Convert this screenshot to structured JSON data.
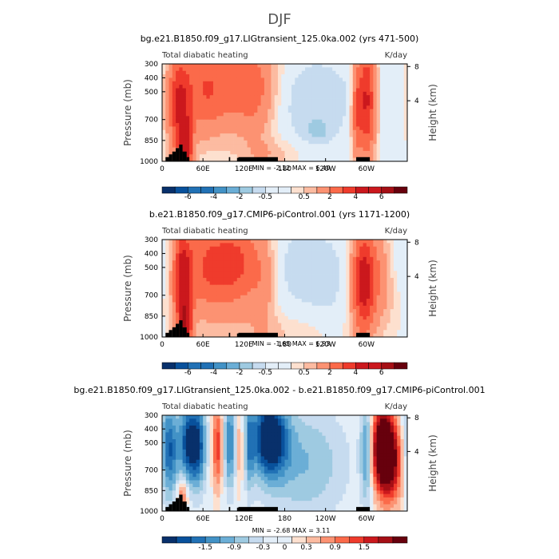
{
  "figure_title": "DJF",
  "colors": {
    "cold": [
      "#08306b",
      "#08519c",
      "#2171b5",
      "#4292c6",
      "#6baed6",
      "#9ecae1",
      "#c6dbef",
      "#e3eef8"
    ],
    "warm": [
      "#fde0cf",
      "#fcbba1",
      "#fc9272",
      "#fb6a4a",
      "#ef3b2c",
      "#cb181d",
      "#a50f15",
      "#67000d"
    ],
    "terrain": "#000000"
  },
  "chart_data": [
    {
      "type": "heatmap",
      "title": "bg.e21.B1850.f09_g17.LIGtransient_125.0ka.002 (yrs 471-500)",
      "left_label": "Total diabatic heating",
      "units": "K/day",
      "ylabel": "Pressure (mb)",
      "ylabel_right": "Height (km)",
      "x_ticks": [
        "0",
        "60E",
        "120E",
        "180",
        "120W",
        "60W"
      ],
      "x_tick_values": [
        0,
        60,
        120,
        180,
        240,
        300
      ],
      "xlim": [
        0,
        360
      ],
      "y_ticks": [
        "300",
        "400",
        "500",
        "700",
        "850",
        "1000"
      ],
      "y_tick_values": [
        300,
        400,
        500,
        700,
        850,
        1000
      ],
      "ylim": [
        300,
        1000
      ],
      "right_ticks": [
        "8",
        "4"
      ],
      "right_tick_values": [
        8,
        4
      ],
      "min_text": "MIN =   -2.12   MAX =   6.40",
      "min": -2.12,
      "max": 6.4,
      "levels": [
        -7,
        -6,
        -5,
        -4,
        -3,
        -2,
        -1,
        -0.5,
        -0.1,
        0.1,
        0.5,
        1,
        2,
        3,
        4,
        5,
        6,
        7
      ],
      "colorbar_labels": [
        "-6",
        "-4",
        "-2",
        "-0.5",
        "0.5",
        "2",
        "4",
        "6"
      ],
      "colorbar_label_levels": [
        -6,
        -4,
        -2,
        -0.5,
        0.5,
        2,
        4,
        6
      ],
      "features": [
        {
          "lon": 25,
          "w": 12,
          "p": 600,
          "hp": 280,
          "a": 3.8
        },
        {
          "lon": 35,
          "w": 7,
          "p": 920,
          "hp": 140,
          "a": 4.0
        },
        {
          "lon": 105,
          "w": 45,
          "p": 480,
          "hp": 230,
          "a": 2.6
        },
        {
          "lon": 60,
          "w": 18,
          "p": 480,
          "hp": 250,
          "a": 1.4
        },
        {
          "lon": 140,
          "w": 18,
          "p": 500,
          "hp": 300,
          "a": 1.0
        },
        {
          "lon": 210,
          "w": 55,
          "p": 560,
          "hp": 230,
          "a": -1.05
        },
        {
          "lon": 228,
          "w": 14,
          "p": 790,
          "hp": 60,
          "a": -0.7
        },
        {
          "lon": 160,
          "w": 30,
          "p": 950,
          "hp": 80,
          "a": 0.8
        },
        {
          "lon": 300,
          "w": 10,
          "p": 560,
          "hp": 300,
          "a": 4.5
        },
        {
          "lon": 285,
          "w": 5,
          "p": 650,
          "hp": 250,
          "a": 2.0
        },
        {
          "lon": 338,
          "w": 22,
          "p": 560,
          "hp": 270,
          "a": -0.3
        }
      ],
      "terrain": [
        {
          "lon0": 5,
          "lon1": 10,
          "p": 970
        },
        {
          "lon0": 10,
          "lon1": 15,
          "p": 950
        },
        {
          "lon0": 15,
          "lon1": 20,
          "p": 930
        },
        {
          "lon0": 20,
          "lon1": 25,
          "p": 905
        },
        {
          "lon0": 25,
          "lon1": 30,
          "p": 880
        },
        {
          "lon0": 30,
          "lon1": 36,
          "p": 930
        },
        {
          "lon0": 36,
          "lon1": 40,
          "p": 970
        },
        {
          "lon0": 98,
          "lon1": 100,
          "p": 970
        },
        {
          "lon0": 110,
          "lon1": 112,
          "p": 975
        },
        {
          "lon0": 112,
          "lon1": 170,
          "p": 970
        },
        {
          "lon0": 285,
          "lon1": 305,
          "p": 970
        }
      ]
    },
    {
      "type": "heatmap",
      "title": "b.e21.B1850.f09_g17.CMIP6-piControl.001 (yrs 1171-1200)",
      "left_label": "Total diabatic heating",
      "units": "K/day",
      "ylabel": "Pressure (mb)",
      "ylabel_right": "Height (km)",
      "x_ticks": [
        "0",
        "60E",
        "120E",
        "180",
        "120W",
        "60W"
      ],
      "x_tick_values": [
        0,
        60,
        120,
        180,
        240,
        300
      ],
      "xlim": [
        0,
        360
      ],
      "y_ticks": [
        "300",
        "400",
        "500",
        "700",
        "850",
        "1000"
      ],
      "y_tick_values": [
        300,
        400,
        500,
        700,
        850,
        1000
      ],
      "ylim": [
        300,
        1000
      ],
      "right_ticks": [
        "8",
        "4"
      ],
      "right_tick_values": [
        8,
        4
      ],
      "min_text": "MIN =   -1.65   MAX =   6.93",
      "min": -1.65,
      "max": 6.93,
      "levels": [
        -7,
        -6,
        -5,
        -4,
        -3,
        -2,
        -1,
        -0.5,
        -0.1,
        0.1,
        0.5,
        1,
        2,
        3,
        4,
        5,
        6,
        7
      ],
      "colorbar_labels": [
        "-6",
        "-4",
        "-2",
        "-0.5",
        "0.5",
        "2",
        "4",
        "6"
      ],
      "colorbar_label_levels": [
        -6,
        -4,
        -2,
        -0.5,
        0.5,
        2,
        4,
        6
      ],
      "features": [
        {
          "lon": 30,
          "w": 10,
          "p": 600,
          "hp": 280,
          "a": 4.5
        },
        {
          "lon": 35,
          "w": 6,
          "p": 920,
          "hp": 130,
          "a": 4.0
        },
        {
          "lon": 65,
          "w": 22,
          "p": 500,
          "hp": 250,
          "a": 2.6
        },
        {
          "lon": 110,
          "w": 25,
          "p": 470,
          "hp": 250,
          "a": 3.1
        },
        {
          "lon": 150,
          "w": 14,
          "p": 600,
          "hp": 280,
          "a": 1.2
        },
        {
          "lon": 205,
          "w": 40,
          "p": 500,
          "hp": 220,
          "a": -0.8
        },
        {
          "lon": 245,
          "w": 22,
          "p": 650,
          "hp": 250,
          "a": -0.35
        },
        {
          "lon": 295,
          "w": 12,
          "p": 600,
          "hp": 280,
          "a": 4.5
        },
        {
          "lon": 320,
          "w": 15,
          "p": 560,
          "hp": 250,
          "a": 1.6
        },
        {
          "lon": 345,
          "w": 15,
          "p": 450,
          "hp": 150,
          "a": -0.5
        },
        {
          "lon": 170,
          "w": 60,
          "p": 970,
          "hp": 90,
          "a": 0.5
        }
      ],
      "terrain": [
        {
          "lon0": 5,
          "lon1": 10,
          "p": 970
        },
        {
          "lon0": 10,
          "lon1": 15,
          "p": 950
        },
        {
          "lon0": 15,
          "lon1": 20,
          "p": 930
        },
        {
          "lon0": 20,
          "lon1": 25,
          "p": 905
        },
        {
          "lon0": 25,
          "lon1": 30,
          "p": 880
        },
        {
          "lon0": 30,
          "lon1": 36,
          "p": 930
        },
        {
          "lon0": 36,
          "lon1": 40,
          "p": 970
        },
        {
          "lon0": 98,
          "lon1": 100,
          "p": 970
        },
        {
          "lon0": 110,
          "lon1": 112,
          "p": 975
        },
        {
          "lon0": 112,
          "lon1": 170,
          "p": 970
        },
        {
          "lon0": 285,
          "lon1": 305,
          "p": 970
        }
      ]
    },
    {
      "type": "heatmap",
      "title": "bg.e21.B1850.f09_g17.LIGtransient_125.0ka.002 - b.e21.B1850.f09_g17.CMIP6-piControl.001",
      "left_label": "Total diabatic heating",
      "units": "K/day",
      "ylabel": "Pressure (mb)",
      "ylabel_right": "Height (km)",
      "x_ticks": [
        "0",
        "60E",
        "120E",
        "180",
        "120W",
        "60W"
      ],
      "x_tick_values": [
        0,
        60,
        120,
        180,
        240,
        300
      ],
      "xlim": [
        0,
        360
      ],
      "y_ticks": [
        "300",
        "400",
        "500",
        "700",
        "850",
        "1000"
      ],
      "y_tick_values": [
        300,
        400,
        500,
        700,
        850,
        1000
      ],
      "ylim": [
        300,
        1000
      ],
      "right_ticks": [
        "8",
        "4"
      ],
      "right_tick_values": [
        8,
        4
      ],
      "min_text": "MIN =   -2.68   MAX =   3.11",
      "min": -2.68,
      "max": 3.11,
      "levels": [
        -2.1,
        -1.8,
        -1.5,
        -1.2,
        -0.9,
        -0.6,
        -0.3,
        -0.1,
        0.1,
        0.3,
        0.6,
        0.9,
        1.2,
        1.5,
        1.8,
        2.1
      ],
      "colorbar_labels": [
        "-1.5",
        "-0.9",
        "-0.3",
        "0",
        "0.3",
        "0.9",
        "1.5"
      ],
      "colorbar_label_levels": [
        -1.5,
        -0.9,
        -0.3,
        0,
        0.3,
        0.9,
        1.5
      ],
      "features": [
        {
          "lon": 10,
          "w": 10,
          "p": 560,
          "hp": 250,
          "a": -1.9
        },
        {
          "lon": 40,
          "w": 10,
          "p": 500,
          "hp": 220,
          "a": -2.2
        },
        {
          "lon": 55,
          "w": 8,
          "p": 520,
          "hp": 230,
          "a": -1.4
        },
        {
          "lon": 82,
          "w": 6,
          "p": 520,
          "hp": 220,
          "a": 1.5
        },
        {
          "lon": 100,
          "w": 8,
          "p": 500,
          "hp": 250,
          "a": -1.5
        },
        {
          "lon": 113,
          "w": 5,
          "p": 520,
          "hp": 250,
          "a": 1.0
        },
        {
          "lon": 128,
          "w": 5,
          "p": 500,
          "hp": 250,
          "a": -1.0
        },
        {
          "lon": 158,
          "w": 18,
          "p": 460,
          "hp": 200,
          "a": -2.6
        },
        {
          "lon": 210,
          "w": 45,
          "p": 650,
          "hp": 300,
          "a": -0.9
        },
        {
          "lon": 325,
          "w": 12,
          "p": 520,
          "hp": 200,
          "a": 2.9
        },
        {
          "lon": 335,
          "w": 15,
          "p": 680,
          "hp": 200,
          "a": 1.6
        },
        {
          "lon": 300,
          "w": 6,
          "p": 560,
          "hp": 260,
          "a": -1.4
        },
        {
          "lon": 30,
          "w": 6,
          "p": 880,
          "hp": 90,
          "a": 1.2
        }
      ],
      "terrain": [
        {
          "lon0": 5,
          "lon1": 10,
          "p": 970
        },
        {
          "lon0": 10,
          "lon1": 15,
          "p": 950
        },
        {
          "lon0": 15,
          "lon1": 20,
          "p": 930
        },
        {
          "lon0": 20,
          "lon1": 25,
          "p": 905
        },
        {
          "lon0": 25,
          "lon1": 30,
          "p": 880
        },
        {
          "lon0": 30,
          "lon1": 36,
          "p": 930
        },
        {
          "lon0": 36,
          "lon1": 40,
          "p": 970
        },
        {
          "lon0": 98,
          "lon1": 100,
          "p": 970
        },
        {
          "lon0": 110,
          "lon1": 112,
          "p": 975
        },
        {
          "lon0": 112,
          "lon1": 170,
          "p": 970
        },
        {
          "lon0": 285,
          "lon1": 305,
          "p": 970
        }
      ]
    }
  ]
}
